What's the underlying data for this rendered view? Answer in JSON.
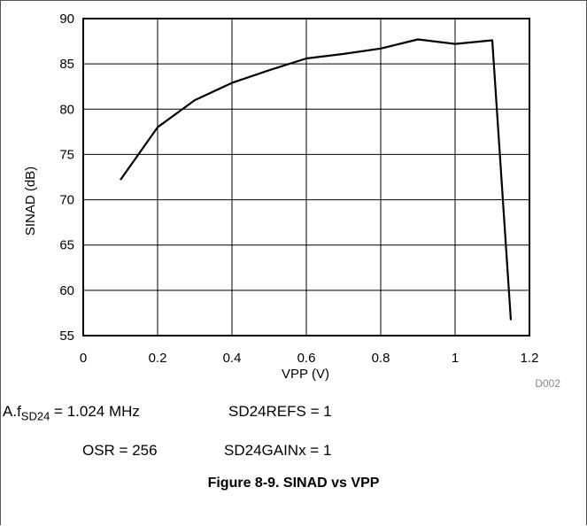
{
  "chart_data": {
    "type": "line",
    "xlabel": "VPP (V)",
    "ylabel": "SINAD (dB)",
    "xlim": [
      0,
      1.2
    ],
    "ylim": [
      55,
      90
    ],
    "x_ticks": [
      "0",
      "0.2",
      "0.4",
      "0.6",
      "0.8",
      "1",
      "1.2"
    ],
    "y_ticks": [
      "55",
      "60",
      "65",
      "70",
      "75",
      "80",
      "85",
      "90"
    ],
    "grid": true,
    "code": "D002",
    "series": [
      {
        "x": [
          0.1,
          0.2,
          0.3,
          0.4,
          0.5,
          0.6,
          0.7,
          0.8,
          0.9,
          1.0,
          1.1,
          1.15
        ],
        "y": [
          72.2,
          78.0,
          81.0,
          82.9,
          84.3,
          85.6,
          86.1,
          86.7,
          87.7,
          87.2,
          87.6,
          56.7
        ]
      }
    ]
  },
  "notes": {
    "line1": {
      "prefix": "A.",
      "f_main": "f",
      "f_sub": "SD24",
      "f_value": " = 1.024 MHz",
      "refs": "SD24REFS = 1"
    },
    "line2": {
      "osr": "OSR = 256",
      "gain": "SD24GAINx = 1"
    }
  },
  "caption": "Figure 8-9. SINAD vs VPP",
  "colors": {
    "line": "#000000",
    "grid": "#000000",
    "code": "#888888"
  }
}
